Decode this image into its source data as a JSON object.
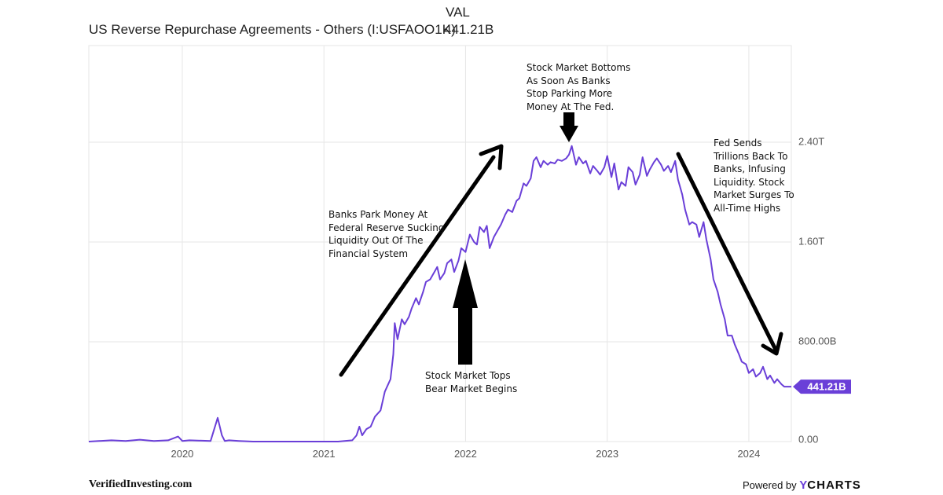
{
  "header": {
    "val_label": "VAL",
    "title": "US Reverse Repurchase Agreements - Others (I:USFAOO1K)",
    "value": "441.21B"
  },
  "colors": {
    "line": "#6a3fd8",
    "grid": "#e6e6e6",
    "arrow": "#000000",
    "badge": "#6a3fd8"
  },
  "chart_data": {
    "type": "line",
    "title": "US Reverse Repurchase Agreements - Others (I:USFAOO1K)",
    "ylim": [
      0,
      2.4
    ],
    "y_ticks": [
      {
        "value": 0,
        "label": "0.00"
      },
      {
        "value": 0.8,
        "label": "800.00B"
      },
      {
        "value": 1.6,
        "label": "1.60T"
      },
      {
        "value": 2.4,
        "label": "2.40T"
      }
    ],
    "x_ticks": [
      {
        "value": 2020,
        "label": "2020"
      },
      {
        "value": 2021,
        "label": "2021"
      },
      {
        "value": 2022,
        "label": "2022"
      },
      {
        "value": 2023,
        "label": "2023"
      },
      {
        "value": 2024,
        "label": "2024"
      }
    ],
    "grid": true,
    "last_value_badge": "441.21B",
    "series": [
      {
        "x": [
          2019.34,
          2019.5,
          2019.6,
          2019.7,
          2019.8,
          2019.9,
          2019.97,
          2020.0,
          2020.05,
          2020.2,
          2020.25,
          2020.28,
          2020.3,
          2020.33,
          2020.4,
          2020.5,
          2020.7,
          2020.9,
          2021.0,
          2021.1,
          2021.2,
          2021.23,
          2021.25,
          2021.27,
          2021.3,
          2021.33,
          2021.36,
          2021.4,
          2021.43,
          2021.45,
          2021.47,
          2021.49,
          2021.5,
          2021.52,
          2021.55,
          2021.57,
          2021.6,
          2021.62,
          2021.65,
          2021.67,
          2021.7,
          2021.72,
          2021.75,
          2021.78,
          2021.8,
          2021.82,
          2021.85,
          2021.87,
          2021.9,
          2021.92,
          2021.95,
          2021.97,
          2022.0,
          2022.03,
          2022.06,
          2022.08,
          2022.1,
          2022.13,
          2022.15,
          2022.17,
          2022.2,
          2022.22,
          2022.25,
          2022.28,
          2022.3,
          2022.33,
          2022.36,
          2022.38,
          2022.41,
          2022.43,
          2022.46,
          2022.48,
          2022.5,
          2022.53,
          2022.55,
          2022.58,
          2022.6,
          2022.63,
          2022.65,
          2022.68,
          2022.71,
          2022.73,
          2022.75,
          2022.78,
          2022.8,
          2022.83,
          2022.85,
          2022.88,
          2022.9,
          2022.93,
          2022.95,
          2022.98,
          2023.0,
          2023.03,
          2023.05,
          2023.08,
          2023.1,
          2023.13,
          2023.15,
          2023.18,
          2023.2,
          2023.23,
          2023.25,
          2023.28,
          2023.3,
          2023.33,
          2023.35,
          2023.38,
          2023.4,
          2023.43,
          2023.45,
          2023.48,
          2023.5,
          2023.53,
          2023.55,
          2023.58,
          2023.6,
          2023.63,
          2023.65,
          2023.68,
          2023.7,
          2023.73,
          2023.75,
          2023.78,
          2023.8,
          2023.83,
          2023.85,
          2023.88,
          2023.9,
          2023.93,
          2023.95,
          2023.98,
          2024.0,
          2024.03,
          2024.05,
          2024.08,
          2024.1,
          2024.13,
          2024.15,
          2024.18,
          2024.2,
          2024.23,
          2024.25,
          2024.28,
          2024.3
        ],
        "y": [
          0.0,
          0.01,
          0.005,
          0.015,
          0.005,
          0.01,
          0.04,
          0.005,
          0.01,
          0.005,
          0.19,
          0.05,
          0.005,
          0.01,
          0.005,
          0.0,
          0.0,
          0.0,
          0.0,
          0.0,
          0.01,
          0.05,
          0.12,
          0.05,
          0.1,
          0.12,
          0.2,
          0.25,
          0.4,
          0.45,
          0.5,
          0.7,
          0.95,
          0.82,
          0.98,
          0.94,
          1.0,
          1.07,
          1.15,
          1.1,
          1.2,
          1.28,
          1.3,
          1.36,
          1.4,
          1.3,
          1.35,
          1.43,
          1.46,
          1.36,
          1.45,
          1.55,
          1.52,
          1.66,
          1.6,
          1.58,
          1.72,
          1.68,
          1.73,
          1.55,
          1.64,
          1.68,
          1.74,
          1.82,
          1.86,
          1.84,
          1.93,
          1.95,
          2.07,
          2.05,
          2.11,
          2.25,
          2.28,
          2.2,
          2.25,
          2.22,
          2.24,
          2.23,
          2.26,
          2.25,
          2.27,
          2.3,
          2.37,
          2.22,
          2.28,
          2.23,
          2.25,
          2.15,
          2.21,
          2.17,
          2.14,
          2.2,
          2.29,
          2.12,
          2.23,
          2.02,
          2.08,
          2.05,
          2.2,
          2.16,
          2.06,
          2.14,
          2.28,
          2.13,
          2.18,
          2.24,
          2.27,
          2.22,
          2.17,
          2.21,
          2.16,
          2.25,
          2.1,
          1.98,
          1.86,
          1.74,
          1.76,
          1.74,
          1.64,
          1.76,
          1.62,
          1.46,
          1.3,
          1.2,
          1.1,
          0.98,
          0.85,
          0.85,
          0.78,
          0.7,
          0.64,
          0.62,
          0.55,
          0.58,
          0.52,
          0.55,
          0.6,
          0.5,
          0.53,
          0.47,
          0.5,
          0.46,
          0.44,
          0.44,
          0.44
        ],
        "color": "#6a3fd8"
      }
    ],
    "annotations": [
      {
        "id": "bottom",
        "lines": [
          "Stock Market Bottoms",
          "As Soon As Banks",
          "Stop Parking More",
          "Money At The Fed."
        ]
      },
      {
        "id": "park",
        "lines": [
          "Banks Park Money At",
          "Federal Reserve Sucking",
          "Liquidity Out Of The",
          "Financial System"
        ]
      },
      {
        "id": "tops",
        "lines": [
          "Stock Market Tops",
          "Bear Market Begins"
        ]
      },
      {
        "id": "fed",
        "lines": [
          "Fed Sends",
          "Trillions Back To",
          "Banks, Infusing",
          "Liquidity. Stock",
          "Market Surges To",
          "All-Time Highs"
        ]
      }
    ]
  },
  "footer": {
    "source": "VerifiedInvesting.com",
    "powered_by": "Powered by",
    "brand_y": "Y",
    "brand_rest": "CHARTS"
  }
}
